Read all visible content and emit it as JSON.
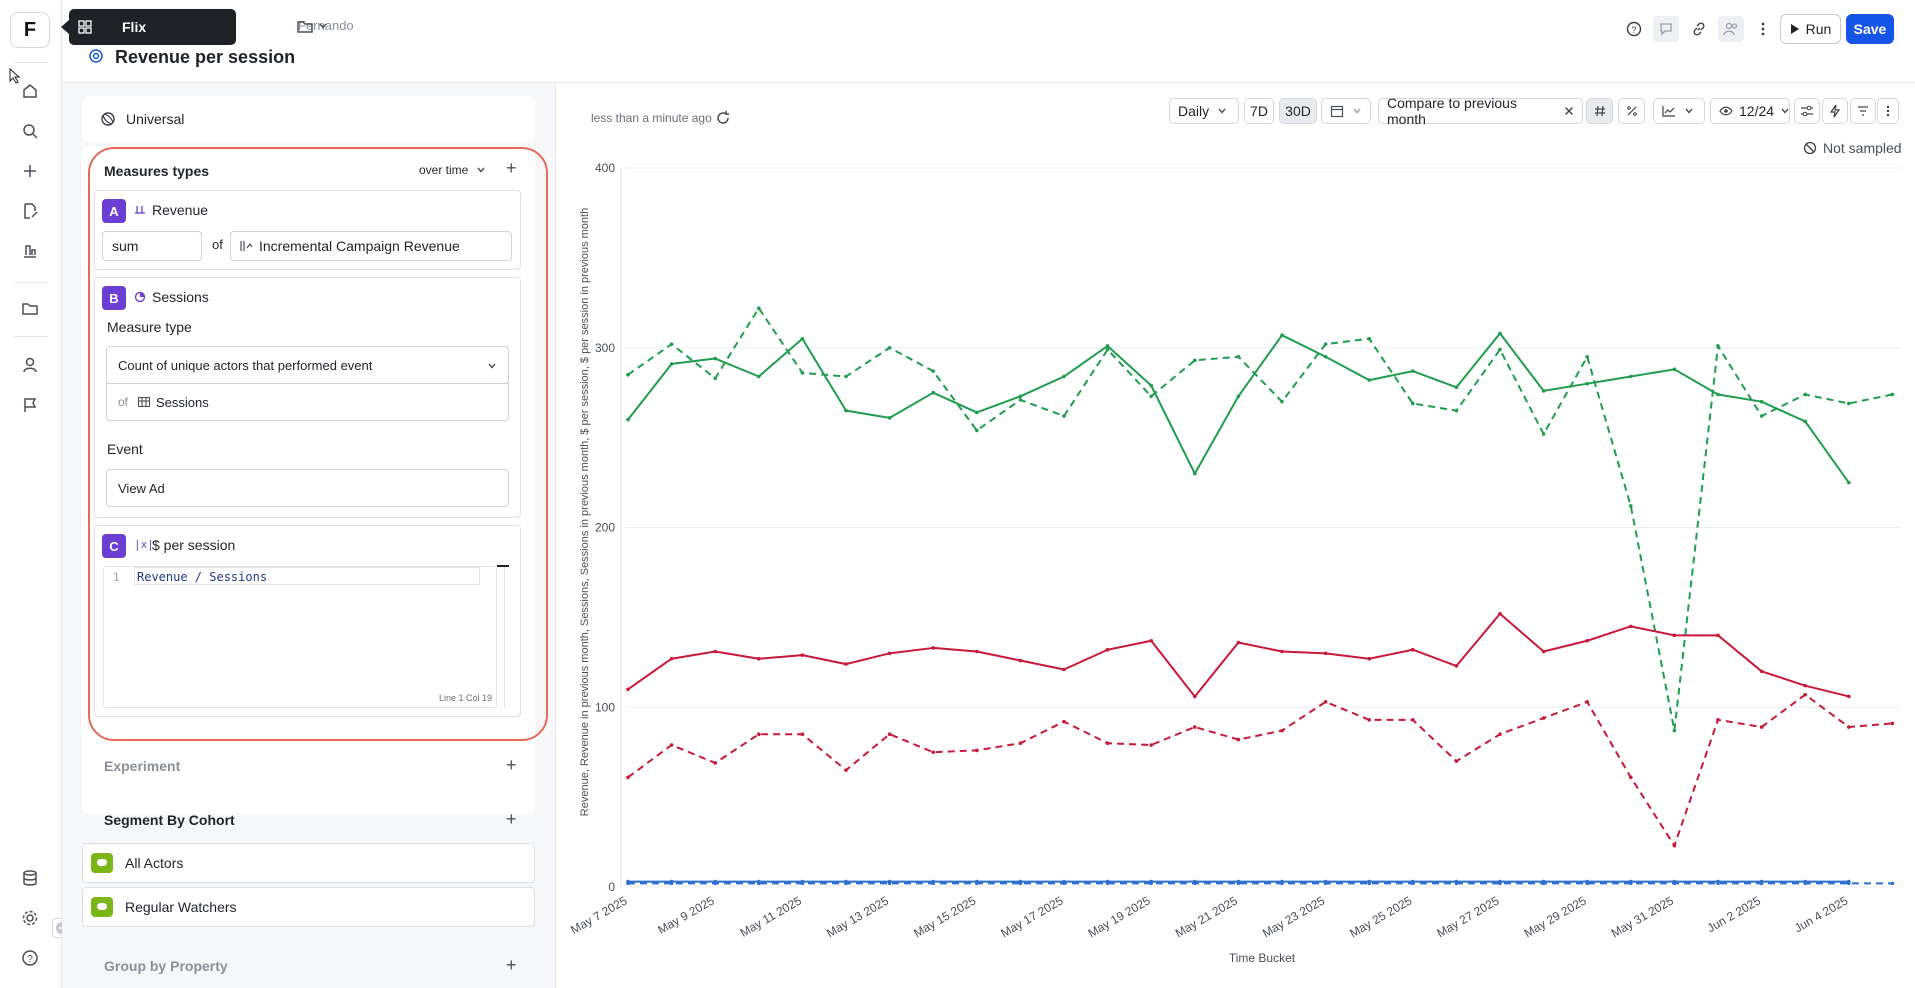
{
  "tooltip": {
    "label": "Flix"
  },
  "header": {
    "breadcrumb_owner": "Fernando",
    "title": "Revenue per session",
    "run_label": "Run",
    "save_label": "Save"
  },
  "panel": {
    "universal_label": "Universal",
    "measures": {
      "title": "Measures types",
      "mode": "over time",
      "a": {
        "badge": "A",
        "name": "Revenue",
        "aggregation": "sum",
        "of_label": "of",
        "property": "Incremental Campaign Revenue"
      },
      "b": {
        "badge": "B",
        "name": "Sessions",
        "measure_type_label": "Measure type",
        "measure_type_value": "Count of unique actors that performed event",
        "of_label": "of",
        "of_value": "Sessions",
        "event_label": "Event",
        "event_value": "View Ad"
      },
      "c": {
        "badge": "C",
        "name": "$ per session",
        "line_no": "1",
        "formula": "Revenue / Sessions",
        "cursor_pos": "Line 1 Col 19"
      }
    },
    "experiment_label": "Experiment",
    "segment_label": "Segment By Cohort",
    "cohorts": [
      "All Actors",
      "Regular Watchers"
    ],
    "group_by_label": "Group by Property"
  },
  "toolbar": {
    "updated": "less than a minute ago",
    "granularity": "Daily",
    "range_7d": "7D",
    "range_30d": "30D",
    "compare": "Compare to previous month",
    "visible_series": "12/24",
    "not_sampled": "Not sampled"
  },
  "colors": {
    "green": "#1f9d4f",
    "red": "#c8193a",
    "blue": "#2f6fcf",
    "accent": "#1754e8",
    "highlight": "#e8685a",
    "badge": "#6b3fd4"
  },
  "chart_data": {
    "type": "line",
    "ylabel": "Revenue, Revenue in previous month, Sessions, Sessions in previous month, $ per session, $ per session in previous month",
    "xlabel": "Time Bucket",
    "ylim": [
      0,
      400
    ],
    "yticks": [
      0,
      100,
      200,
      300,
      400
    ],
    "x_tick_labels": [
      "May 7 2025",
      "May 9 2025",
      "May 11 2025",
      "May 13 2025",
      "May 15 2025",
      "May 17 2025",
      "May 19 2025",
      "May 21 2025",
      "May 23 2025",
      "May 25 2025",
      "May 27 2025",
      "May 29 2025",
      "May 31 2025",
      "Jun 2 2025",
      "Jun 4 2025"
    ],
    "grid": true,
    "series": [
      {
        "color": "#1f9d4f",
        "dash": false,
        "values": [
          260,
          291,
          294,
          284,
          305,
          265,
          261,
          275,
          264,
          273,
          284,
          301,
          279,
          230,
          273,
          307,
          295,
          282,
          287,
          278,
          308,
          276,
          280,
          284,
          288,
          274,
          270,
          259,
          225
        ]
      },
      {
        "color": "#1f9d4f",
        "dash": true,
        "values": [
          285,
          302,
          283,
          322,
          286,
          284,
          300,
          287,
          254,
          271,
          262,
          299,
          273,
          293,
          295,
          270,
          302,
          305,
          269,
          265,
          299,
          252,
          295,
          212,
          87,
          301,
          262,
          274,
          269,
          274
        ]
      },
      {
        "color": "#c8193a",
        "dash": false,
        "values": [
          110,
          127,
          131,
          127,
          129,
          124,
          130,
          133,
          131,
          126,
          121,
          132,
          137,
          106,
          136,
          131,
          130,
          127,
          132,
          123,
          152,
          131,
          137,
          145,
          140,
          140,
          120,
          112,
          106
        ]
      },
      {
        "color": "#c8193a",
        "dash": true,
        "values": [
          61,
          79,
          69,
          85,
          85,
          65,
          85,
          75,
          76,
          80,
          92,
          80,
          79,
          89,
          82,
          87,
          103,
          93,
          93,
          70,
          85,
          94,
          103,
          61,
          23,
          93,
          89,
          107,
          89,
          91
        ]
      },
      {
        "color": "#2f6fcf",
        "dash": false,
        "values": [
          3,
          3,
          3,
          3,
          3,
          3,
          3,
          3,
          3,
          3,
          3,
          3,
          3,
          3,
          3,
          3,
          3,
          3,
          3,
          3,
          3,
          3,
          3,
          3,
          3,
          3,
          3,
          3,
          3
        ]
      },
      {
        "color": "#2f6fcf",
        "dash": true,
        "values": [
          2,
          2,
          2,
          2,
          2,
          2,
          2,
          2,
          2,
          2,
          2,
          2,
          2,
          2,
          2,
          2,
          2,
          2,
          2,
          2,
          2,
          2,
          2,
          2,
          2,
          2,
          2,
          2,
          2,
          2
        ]
      }
    ]
  }
}
